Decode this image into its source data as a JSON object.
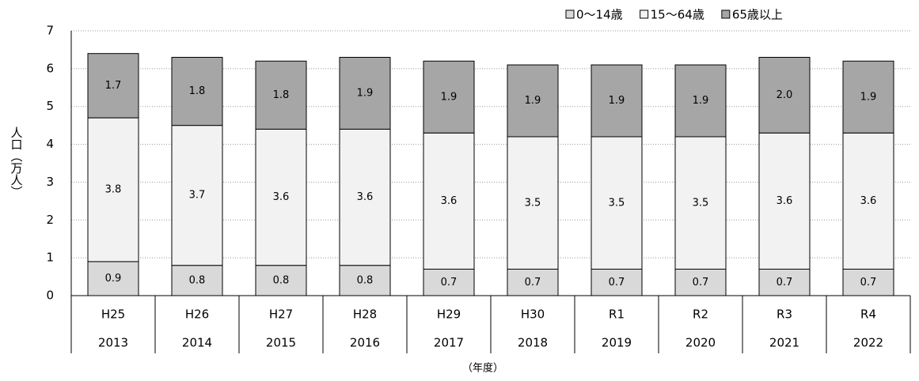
{
  "chart_data": {
    "type": "stacked_bar",
    "y_label": "人口（万人）",
    "x_label": "（年度）",
    "categories": [
      "H25",
      "H26",
      "H27",
      "H28",
      "H29",
      "H30",
      "R1",
      "R2",
      "R3",
      "R4"
    ],
    "categories_year": [
      "2013",
      "2014",
      "2015",
      "2016",
      "2017",
      "2018",
      "2019",
      "2020",
      "2021",
      "2022"
    ],
    "series": [
      {
        "name": "0〜14歳",
        "color": "#d9d9d9",
        "values": [
          0.9,
          0.8,
          0.8,
          0.8,
          0.7,
          0.7,
          0.7,
          0.7,
          0.7,
          0.7
        ]
      },
      {
        "name": "15〜64歳",
        "color": "#f2f2f2",
        "values": [
          3.8,
          3.7,
          3.6,
          3.6,
          3.6,
          3.5,
          3.5,
          3.5,
          3.6,
          3.6
        ]
      },
      {
        "name": "65歳以上",
        "color": "#a6a6a6",
        "values": [
          1.7,
          1.8,
          1.8,
          1.9,
          1.9,
          1.9,
          1.9,
          1.9,
          2.0,
          1.9
        ],
        "value_labels": [
          "1.7",
          "1.8",
          "1.8",
          "1.9",
          "1.9",
          "1.9",
          "1.9",
          "1.9",
          "2.0",
          "1.9"
        ]
      }
    ],
    "ylim": [
      0,
      7
    ],
    "yticks": [
      0,
      1,
      2,
      3,
      4,
      5,
      6,
      7
    ],
    "grid": true,
    "legend": "top-right"
  }
}
